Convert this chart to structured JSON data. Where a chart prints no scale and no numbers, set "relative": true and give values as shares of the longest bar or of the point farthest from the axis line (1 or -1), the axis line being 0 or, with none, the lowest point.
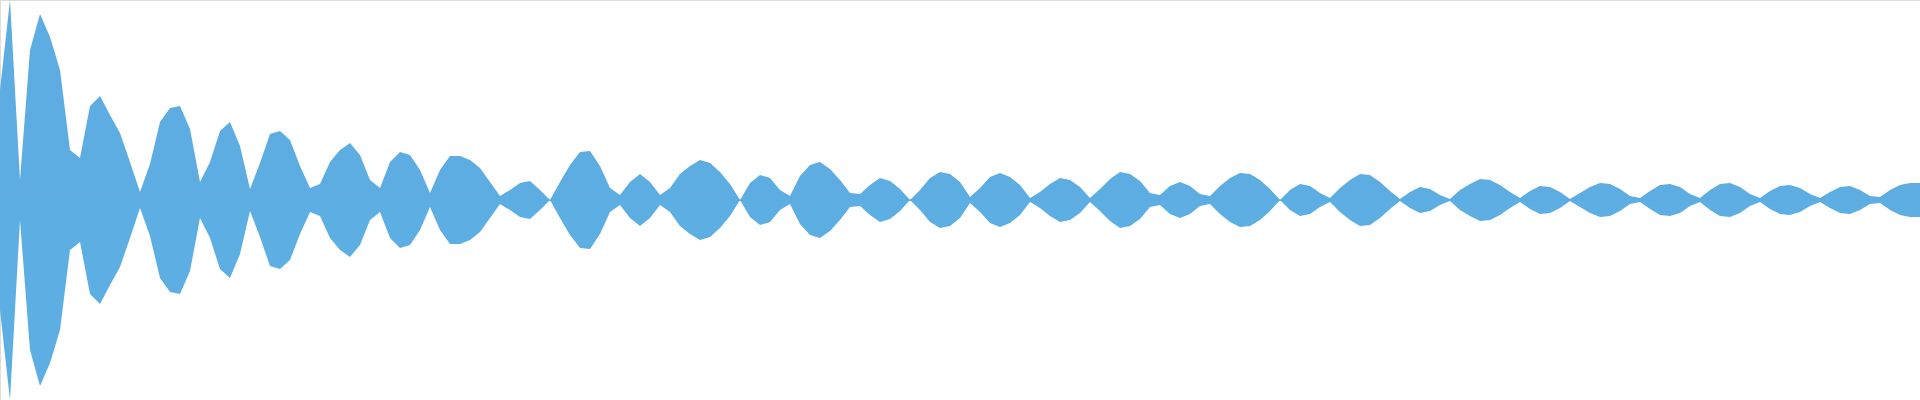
{
  "chart_data": {
    "type": "area",
    "relative": true,
    "categories": [
      null,
      null,
      null,
      null,
      null,
      null,
      null,
      null,
      null,
      null,
      null,
      null,
      null,
      null,
      null,
      null,
      null,
      null,
      null,
      null,
      null,
      null,
      null,
      null,
      null,
      null,
      null,
      null,
      null,
      null,
      null,
      null,
      null,
      null,
      null,
      null,
      null,
      null,
      null,
      null,
      null,
      null,
      null,
      null,
      null,
      null,
      null,
      null,
      null,
      null,
      null,
      null,
      null,
      null,
      null,
      null,
      null,
      null,
      null,
      null,
      null,
      null,
      null,
      null,
      null,
      null,
      null,
      null,
      null,
      null,
      null,
      null,
      null,
      null,
      null,
      null,
      null,
      null,
      null,
      null,
      null,
      null,
      null,
      null,
      null,
      null,
      null,
      null,
      null,
      null,
      null,
      null,
      null,
      null,
      null,
      null,
      null,
      null,
      null,
      null,
      null,
      null,
      null,
      null,
      null,
      null,
      null,
      null,
      null,
      null,
      null,
      null,
      null,
      null,
      null,
      null,
      null,
      null,
      null,
      null,
      null,
      null,
      null,
      null,
      null,
      null,
      null,
      null,
      null,
      null,
      null,
      null,
      null,
      null,
      null,
      null,
      null,
      null,
      null,
      null,
      null,
      null,
      null,
      null,
      null,
      null,
      null,
      null,
      null,
      null,
      null,
      null,
      null,
      null,
      null,
      null,
      null,
      null,
      null,
      null,
      null,
      null,
      null,
      null,
      null,
      null,
      null,
      null,
      null,
      null,
      null,
      null,
      null,
      null,
      null,
      null,
      null,
      null,
      null,
      null,
      null,
      null,
      null,
      null,
      null,
      null,
      null,
      null,
      null,
      null,
      null,
      null,
      null
    ],
    "series": [
      {
        "color": "#5dade2",
        "values": [
          0.55,
          1.0,
          0.1,
          0.75,
          0.93,
          0.815,
          0.65,
          0.25,
          0.21,
          0.47,
          0.52,
          0.425,
          0.335,
          0.19,
          0.04,
          0.18,
          0.39,
          0.46,
          0.47,
          0.355,
          0.09,
          0.19,
          0.345,
          0.39,
          0.27,
          0.055,
          0.185,
          0.33,
          0.345,
          0.3,
          0.17,
          0.06,
          0.08,
          0.19,
          0.25,
          0.285,
          0.225,
          0.1,
          0.06,
          0.19,
          0.24,
          0.225,
          0.15,
          0.035,
          0.15,
          0.22,
          0.22,
          0.2,
          0.16,
          0.09,
          0.02,
          0.05,
          0.085,
          0.095,
          0.05,
          0,
          0.09,
          0.175,
          0.24,
          0.245,
          0.17,
          0.06,
          0.025,
          0.09,
          0.13,
          0.09,
          0.025,
          0.06,
          0.13,
          0.17,
          0.2,
          0.185,
          0.14,
          0.08,
          0,
          0.085,
          0.125,
          0.11,
          0.05,
          0.02,
          0.12,
          0.175,
          0.19,
          0.155,
          0.1,
          0.035,
          0.03,
          0.075,
          0.11,
          0.095,
          0.055,
          0,
          0.05,
          0.11,
          0.14,
          0.13,
          0.09,
          0.015,
          0.06,
          0.115,
          0.135,
          0.115,
          0.075,
          0.01,
          0.04,
          0.08,
          0.11,
          0.1,
          0.065,
          0.01,
          0.055,
          0.105,
          0.14,
          0.13,
          0.095,
          0.035,
          0.025,
          0.07,
          0.09,
          0.07,
          0.03,
          0.02,
          0.07,
          0.11,
          0.135,
          0.13,
          0.1,
          0.055,
          0,
          0.05,
          0.08,
          0.07,
          0.035,
          0.01,
          0.06,
          0.1,
          0.13,
          0.125,
          0.09,
          0.045,
          0.005,
          0.04,
          0.065,
          0.055,
          0.025,
          0.005,
          0.05,
          0.08,
          0.105,
          0.1,
          0.075,
          0.04,
          0.01,
          0.045,
          0.07,
          0.065,
          0.04,
          0.005,
          0.035,
          0.065,
          0.085,
          0.08,
          0.055,
          0.02,
          0.01,
          0.045,
          0.075,
          0.08,
          0.065,
          0.03,
          0.01,
          0.05,
          0.08,
          0.085,
          0.065,
          0.03,
          0.01,
          0.045,
          0.07,
          0.075,
          0.06,
          0.03,
          0.01,
          0.04,
          0.065,
          0.07,
          0.05,
          0.02,
          0.015,
          0.05,
          0.075,
          0.085,
          0.085
        ]
      },
      {
        "color": "#5daee2",
        "values": [
          -0.55,
          -1.0,
          -0.1,
          -0.75,
          -0.93,
          -0.815,
          -0.65,
          -0.25,
          -0.21,
          -0.47,
          -0.52,
          -0.425,
          -0.335,
          -0.19,
          -0.04,
          -0.18,
          -0.39,
          -0.46,
          -0.47,
          -0.355,
          -0.09,
          -0.19,
          -0.345,
          -0.39,
          -0.27,
          -0.055,
          -0.185,
          -0.33,
          -0.345,
          -0.3,
          -0.17,
          -0.06,
          -0.08,
          -0.19,
          -0.25,
          -0.285,
          -0.225,
          -0.1,
          -0.06,
          -0.19,
          -0.24,
          -0.225,
          -0.15,
          -0.035,
          -0.15,
          -0.22,
          -0.22,
          -0.2,
          -0.16,
          -0.09,
          -0.02,
          -0.05,
          -0.085,
          -0.095,
          -0.05,
          0,
          -0.09,
          -0.175,
          -0.24,
          -0.245,
          -0.17,
          -0.06,
          -0.025,
          -0.09,
          -0.13,
          -0.09,
          -0.025,
          -0.06,
          -0.13,
          -0.17,
          -0.2,
          -0.185,
          -0.14,
          -0.08,
          0,
          -0.085,
          -0.125,
          -0.11,
          -0.05,
          -0.02,
          -0.12,
          -0.175,
          -0.19,
          -0.155,
          -0.1,
          -0.035,
          -0.03,
          -0.075,
          -0.11,
          -0.095,
          -0.055,
          0,
          -0.05,
          -0.11,
          -0.14,
          -0.13,
          -0.09,
          -0.015,
          -0.06,
          -0.115,
          -0.135,
          -0.115,
          -0.075,
          -0.01,
          -0.04,
          -0.08,
          -0.11,
          -0.1,
          -0.065,
          -0.01,
          -0.055,
          -0.105,
          -0.14,
          -0.13,
          -0.095,
          -0.035,
          -0.025,
          -0.07,
          -0.09,
          -0.07,
          -0.03,
          -0.02,
          -0.07,
          -0.11,
          -0.135,
          -0.13,
          -0.1,
          -0.055,
          0,
          -0.05,
          -0.08,
          -0.07,
          -0.035,
          -0.01,
          -0.06,
          -0.1,
          -0.13,
          -0.125,
          -0.09,
          -0.045,
          -0.005,
          -0.04,
          -0.065,
          -0.055,
          -0.025,
          -0.005,
          -0.05,
          -0.08,
          -0.105,
          -0.1,
          -0.075,
          -0.04,
          -0.01,
          -0.045,
          -0.07,
          -0.065,
          -0.04,
          -0.005,
          -0.035,
          -0.065,
          -0.085,
          -0.08,
          -0.055,
          -0.02,
          -0.01,
          -0.045,
          -0.075,
          -0.08,
          -0.065,
          -0.03,
          -0.01,
          -0.05,
          -0.08,
          -0.085,
          -0.065,
          -0.03,
          -0.01,
          -0.045,
          -0.07,
          -0.075,
          -0.06,
          -0.03,
          -0.01,
          -0.04,
          -0.065,
          -0.07,
          -0.05,
          -0.02,
          -0.015,
          -0.05,
          -0.075,
          -0.085,
          -0.085
        ]
      }
    ],
    "ref_lines": [
      {
        "axis": "y",
        "value": 0,
        "color": "#5dade2"
      }
    ]
  }
}
